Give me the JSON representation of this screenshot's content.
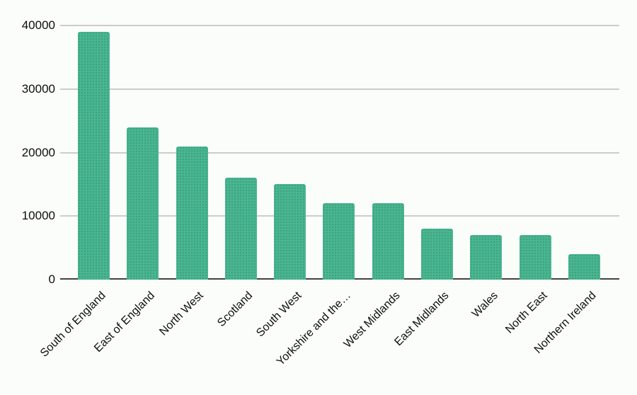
{
  "chart_data": {
    "type": "bar",
    "title": "",
    "xlabel": "",
    "ylabel": "",
    "categories": [
      "South of England",
      "East of England",
      "North West",
      "Scotland",
      "South West",
      "Yorkshire and the…",
      "West Midlands",
      "East Midlands",
      "Wales",
      "North East",
      "Northern Ireland"
    ],
    "values": [
      39000,
      24000,
      21000,
      16000,
      15000,
      12000,
      12000,
      8000,
      7000,
      7000,
      4000
    ],
    "ylim": [
      0,
      40000
    ],
    "yticks": [
      0,
      10000,
      20000,
      30000,
      40000
    ],
    "ytick_labels": [
      "0",
      "10000",
      "20000",
      "30000",
      "40000"
    ],
    "grid": "horizontal",
    "legend_position": "none",
    "x_label_rotation_deg": -45,
    "bar_color": "#49b591",
    "gridline_color": "#cccccc",
    "baseline_color": "#424242",
    "background_color": "#fbfdfb",
    "text_color": "#0d0d0d"
  }
}
